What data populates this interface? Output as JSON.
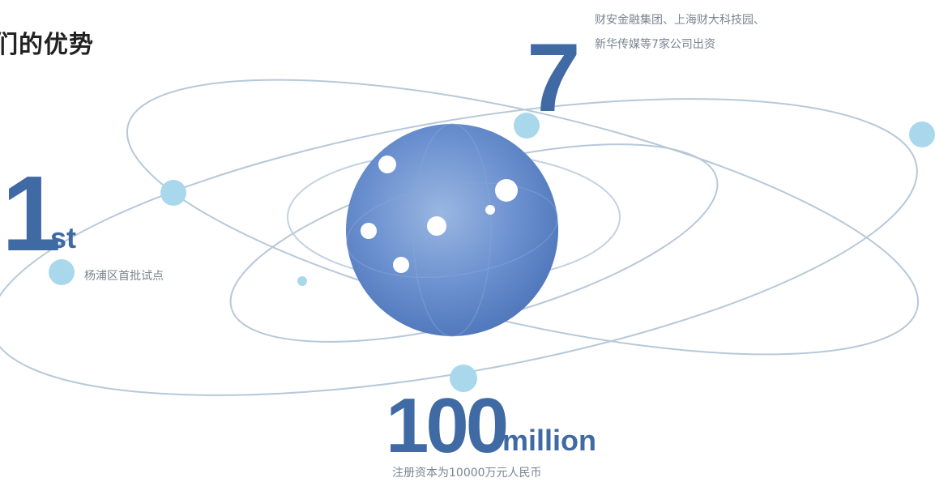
{
  "heading": "们的优势",
  "stats": {
    "first": {
      "value": "1",
      "suffix": "st",
      "caption": "杨浦区首批试点"
    },
    "seven": {
      "value": "7",
      "caption_line1": "财安金融集团、上海财大科技园、",
      "caption_line2": "新华传媒等7家公司出资"
    },
    "capital": {
      "value": "100",
      "suffix": "million",
      "caption": "注册资本为10000万元人民币"
    }
  },
  "colors": {
    "accent": "#3f6aa3",
    "orbit": "#b7c8d8",
    "node": "#a9d8ec",
    "sphere": "#5b84c4"
  }
}
